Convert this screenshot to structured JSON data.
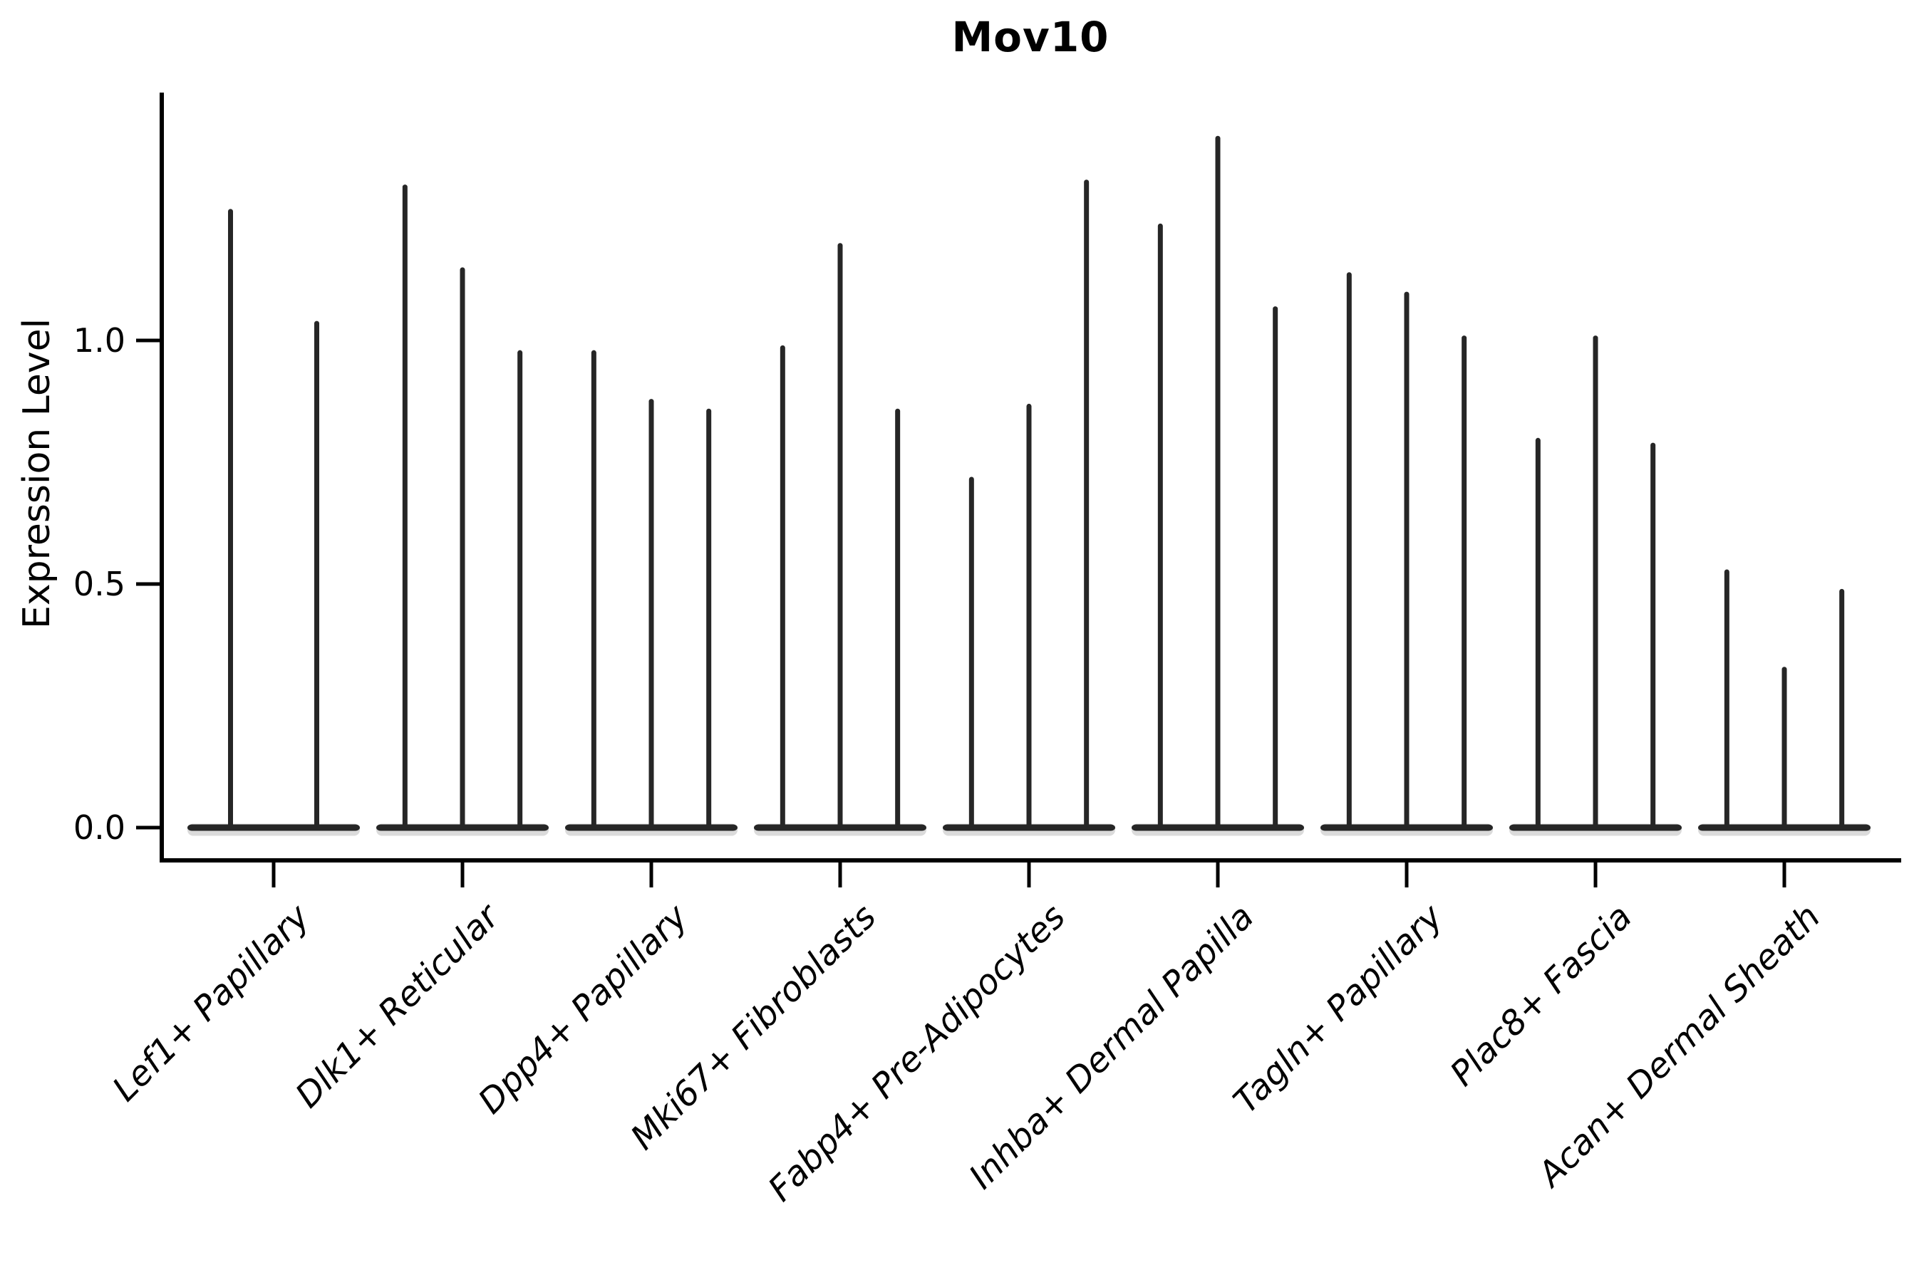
{
  "chart_data": {
    "type": "violin",
    "title": "Mov10",
    "ylabel": "Expression Level",
    "xlabel": "",
    "grid": false,
    "legend": "none",
    "background": "#ffffff",
    "ink_color": "#000000",
    "violin_color": "#262626",
    "x_label_angle_deg": 45,
    "ytick_labels": [
      "0.0",
      "0.5",
      "1.0"
    ],
    "ytick_values": [
      0.0,
      0.5,
      1.0
    ],
    "ylim": [
      -0.07,
      1.51
    ],
    "categories": [
      "Lef1+ Papillary",
      "Dlk1+ Reticular",
      "Dpp4+ Papillary",
      "Mki67+ Fibroblasts",
      "Fabp4+ Pre-Adipocytes",
      "Inhba+ Dermal Papilla",
      "Tagln+ Papillary",
      "Plac8+ Fascia",
      "Acan+ Dermal Sheath"
    ],
    "groups": [
      {
        "category": "Lef1+ Papillary",
        "violin_max_values": [
          1.27,
          1.04
        ]
      },
      {
        "category": "Dlk1+ Reticular",
        "violin_max_values": [
          1.32,
          1.15,
          0.98
        ]
      },
      {
        "category": "Dpp4+ Papillary",
        "violin_max_values": [
          0.98,
          0.88,
          0.86
        ]
      },
      {
        "category": "Mki67+ Fibroblasts",
        "violin_max_values": [
          0.99,
          1.2,
          0.86
        ]
      },
      {
        "category": "Fabp4+ Pre-Adipocytes",
        "violin_max_values": [
          0.72,
          0.87,
          1.33
        ]
      },
      {
        "category": "Inhba+ Dermal Papilla",
        "violin_max_values": [
          1.24,
          1.42,
          1.07
        ]
      },
      {
        "category": "Tagln+ Papillary",
        "violin_max_values": [
          1.14,
          1.1,
          1.01
        ]
      },
      {
        "category": "Plac8+ Fascia",
        "violin_max_values": [
          0.8,
          1.01,
          0.79
        ]
      },
      {
        "category": "Acan+ Dermal Sheath",
        "violin_max_values": [
          0.53,
          0.33,
          0.49
        ]
      }
    ],
    "shape_note": "each violin is a flat lens at 0 expression with a thin vertical spike up to its max value"
  }
}
